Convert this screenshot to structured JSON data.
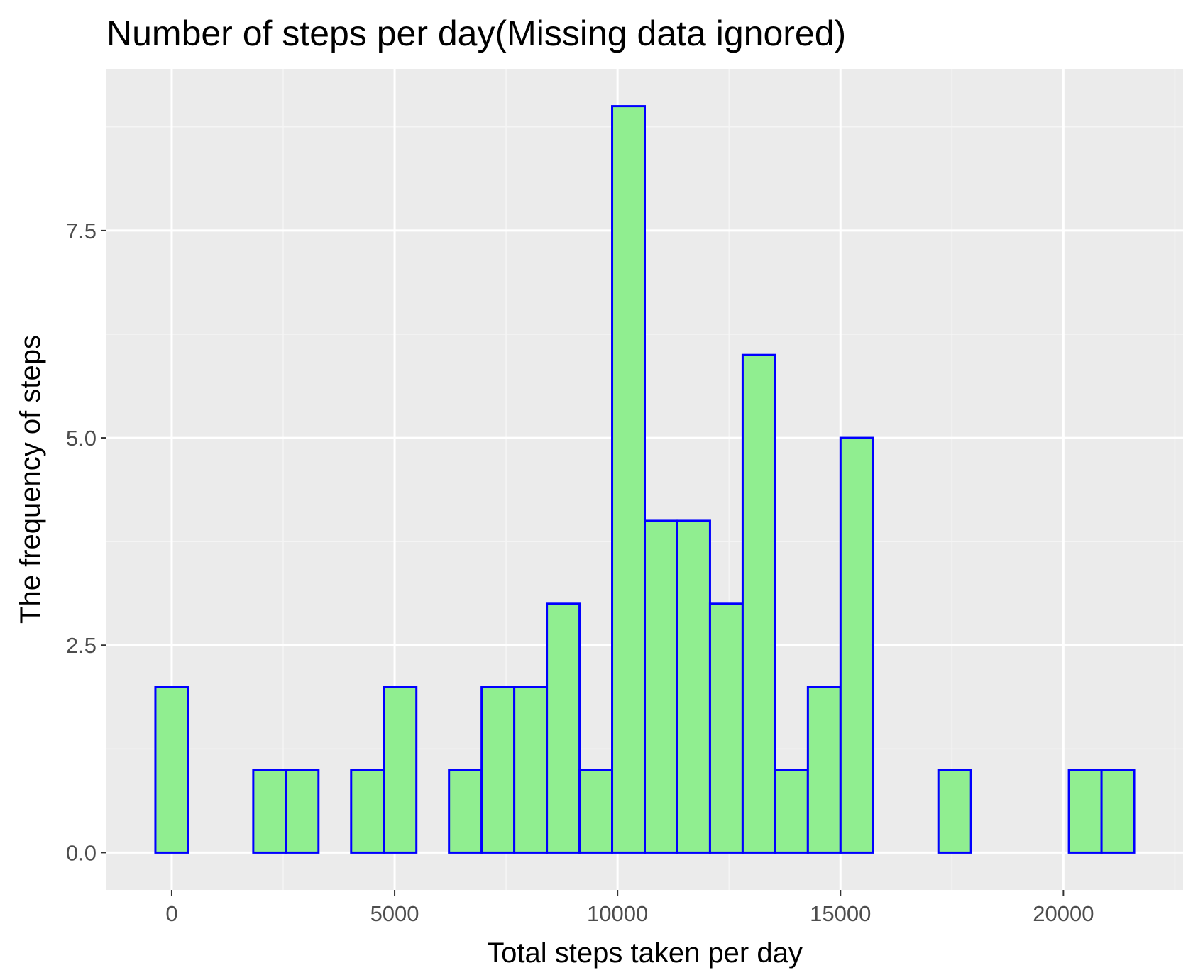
{
  "chart_data": {
    "type": "bar",
    "title": "Number of steps per day(Missing data ignored)",
    "xlabel": "Total steps taken per day",
    "ylabel": "The frequency of steps",
    "bin_width": 731.75,
    "bins": [
      {
        "center": 0,
        "count": 2
      },
      {
        "center": 731.75,
        "count": 0
      },
      {
        "center": 1463.5,
        "count": 0
      },
      {
        "center": 2195.25,
        "count": 1
      },
      {
        "center": 2927,
        "count": 1
      },
      {
        "center": 3658.75,
        "count": 0
      },
      {
        "center": 4390.5,
        "count": 1
      },
      {
        "center": 5122.25,
        "count": 2
      },
      {
        "center": 5854,
        "count": 0
      },
      {
        "center": 6585.75,
        "count": 1
      },
      {
        "center": 7317.5,
        "count": 2
      },
      {
        "center": 8049.25,
        "count": 2
      },
      {
        "center": 8781,
        "count": 3
      },
      {
        "center": 9512.75,
        "count": 1
      },
      {
        "center": 10244.5,
        "count": 9
      },
      {
        "center": 10976.25,
        "count": 4
      },
      {
        "center": 11708,
        "count": 4
      },
      {
        "center": 12439.75,
        "count": 3
      },
      {
        "center": 13171.5,
        "count": 6
      },
      {
        "center": 13903.25,
        "count": 1
      },
      {
        "center": 14635,
        "count": 2
      },
      {
        "center": 15366.75,
        "count": 5
      },
      {
        "center": 16098.5,
        "count": 0
      },
      {
        "center": 16830.25,
        "count": 0
      },
      {
        "center": 17562,
        "count": 1
      },
      {
        "center": 18293.75,
        "count": 0
      },
      {
        "center": 19025.5,
        "count": 0
      },
      {
        "center": 19757.25,
        "count": 0
      },
      {
        "center": 20489,
        "count": 1
      },
      {
        "center": 21220.75,
        "count": 1
      }
    ],
    "xlim": [
      -1463.5,
      22684.25
    ],
    "ylim": [
      -0.45,
      9.45
    ],
    "x_ticks": [
      0,
      5000,
      10000,
      15000,
      20000
    ],
    "x_tick_labels": [
      "0",
      "5000",
      "10000",
      "15000",
      "20000"
    ],
    "y_ticks": [
      0,
      2.5,
      5,
      7.5
    ],
    "y_tick_labels": [
      "0.0",
      "2.5",
      "5.0",
      "7.5"
    ],
    "grid": true,
    "colors": {
      "panel_background": "#EBEBEB",
      "grid_major": "#FFFFFF",
      "grid_minor": "#F5F5F5",
      "bar_fill": "#90EE90",
      "bar_outline": "#0000FF",
      "tick_label": "#4D4D4D",
      "axis_tick": "#333333"
    }
  }
}
